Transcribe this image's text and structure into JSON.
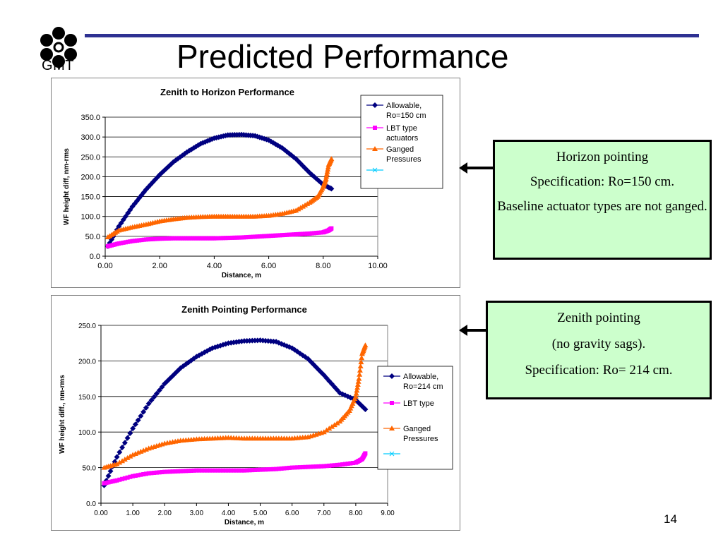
{
  "logo": {
    "text": "GMT"
  },
  "slide": {
    "title": "Predicted Performance",
    "page_number": "14"
  },
  "callouts": {
    "horizon": [
      "Horizon pointing",
      "Specification: Ro=150 cm.",
      "Baseline actuator types are not ganged."
    ],
    "zenith": [
      "Zenith pointing",
      "(no gravity sags).",
      "Specification:  Ro= 214 cm."
    ]
  },
  "colors": {
    "allowable": "#000080",
    "lbt": "#ff00ff",
    "ganged": "#ff6600",
    "blank": "#00ccff",
    "callout_bg": "#ccffcc",
    "title_rule": "#2e3192"
  },
  "chart_data": [
    {
      "type": "line",
      "title": "Zenith to Horizon Performance",
      "xlabel": "Distance, m",
      "ylabel": "WF height diff, nm-rms",
      "xlim": [
        0,
        10
      ],
      "ylim": [
        0,
        350
      ],
      "xticks": [
        "0.00",
        "2.00",
        "4.00",
        "6.00",
        "8.00",
        "10.00"
      ],
      "yticks": [
        "0.0",
        "50.0",
        "100.0",
        "150.0",
        "200.0",
        "250.0",
        "300.0",
        "350.0"
      ],
      "grid": "horizontal",
      "legend_position": "top-right",
      "series": [
        {
          "name": "Allowable, Ro=150 cm",
          "marker": "diamond",
          "x": [
            0.1,
            0.5,
            1.0,
            1.5,
            2.0,
            2.5,
            3.0,
            3.5,
            4.0,
            4.5,
            5.0,
            5.5,
            6.0,
            6.5,
            7.0,
            7.5,
            8.0,
            8.3
          ],
          "y": [
            25,
            75,
            125,
            168,
            205,
            237,
            262,
            283,
            297,
            305,
            306,
            303,
            292,
            272,
            245,
            210,
            180,
            170
          ]
        },
        {
          "name": "LBT type actuators",
          "marker": "square",
          "x": [
            0.1,
            0.5,
            1.0,
            1.5,
            2.0,
            2.5,
            3.0,
            3.5,
            4.0,
            4.5,
            5.0,
            5.5,
            6.0,
            6.5,
            7.0,
            7.5,
            8.0,
            8.2,
            8.3
          ],
          "y": [
            25,
            32,
            38,
            42,
            44,
            45,
            45,
            45,
            45,
            46,
            47,
            49,
            51,
            53,
            55,
            57,
            60,
            65,
            70
          ]
        },
        {
          "name": "Ganged Pressures",
          "marker": "triangle",
          "x": [
            0.1,
            0.5,
            1.0,
            1.5,
            2.0,
            2.5,
            3.0,
            3.5,
            4.0,
            4.5,
            5.0,
            5.5,
            6.0,
            6.5,
            7.0,
            7.5,
            7.8,
            8.0,
            8.1,
            8.2,
            8.3
          ],
          "y": [
            48,
            65,
            73,
            80,
            88,
            93,
            97,
            99,
            100,
            100,
            100,
            100,
            102,
            107,
            115,
            135,
            150,
            175,
            195,
            230,
            245
          ]
        },
        {
          "name": "",
          "marker": "x",
          "x": [],
          "y": []
        }
      ]
    },
    {
      "type": "line",
      "title": "Zenith Pointing Performance",
      "xlabel": "Distance, m",
      "ylabel": "WF height diff., nm-rms",
      "xlim": [
        0,
        9
      ],
      "ylim": [
        0,
        250
      ],
      "xticks": [
        "0.00",
        "1.00",
        "2.00",
        "3.00",
        "4.00",
        "5.00",
        "6.00",
        "7.00",
        "8.00",
        "9.00"
      ],
      "yticks": [
        "0.0",
        "50.0",
        "100.0",
        "150.0",
        "200.0",
        "250.0"
      ],
      "grid": "horizontal",
      "legend_position": "right",
      "series": [
        {
          "name": "Allowable, Ro=214 cm",
          "marker": "diamond",
          "x": [
            0.1,
            0.5,
            1.0,
            1.5,
            2.0,
            2.5,
            3.0,
            3.5,
            4.0,
            4.5,
            5.0,
            5.5,
            6.0,
            6.5,
            7.0,
            7.5,
            8.0,
            8.3
          ],
          "y": [
            25,
            65,
            105,
            140,
            168,
            190,
            206,
            218,
            225,
            228,
            229,
            227,
            218,
            203,
            180,
            155,
            145,
            132
          ]
        },
        {
          "name": "LBT type",
          "marker": "square",
          "x": [
            0.1,
            0.5,
            1.0,
            1.5,
            2.0,
            2.5,
            3.0,
            3.5,
            4.0,
            4.5,
            5.0,
            5.5,
            6.0,
            6.5,
            7.0,
            7.5,
            8.0,
            8.2,
            8.3
          ],
          "y": [
            28,
            32,
            38,
            42,
            44,
            45,
            46,
            46,
            46,
            46,
            47,
            48,
            50,
            51,
            52,
            54,
            57,
            62,
            70
          ]
        },
        {
          "name": "Ganged Pressures",
          "marker": "triangle",
          "x": [
            0.1,
            0.5,
            1.0,
            1.5,
            2.0,
            2.5,
            3.0,
            3.5,
            4.0,
            4.5,
            5.0,
            5.5,
            6.0,
            6.5,
            7.0,
            7.5,
            7.8,
            8.0,
            8.1,
            8.2,
            8.3
          ],
          "y": [
            50,
            55,
            68,
            77,
            84,
            88,
            90,
            91,
            92,
            91,
            91,
            91,
            91,
            93,
            100,
            115,
            130,
            150,
            175,
            210,
            222
          ]
        },
        {
          "name": "",
          "marker": "x",
          "x": [],
          "y": []
        }
      ]
    }
  ]
}
